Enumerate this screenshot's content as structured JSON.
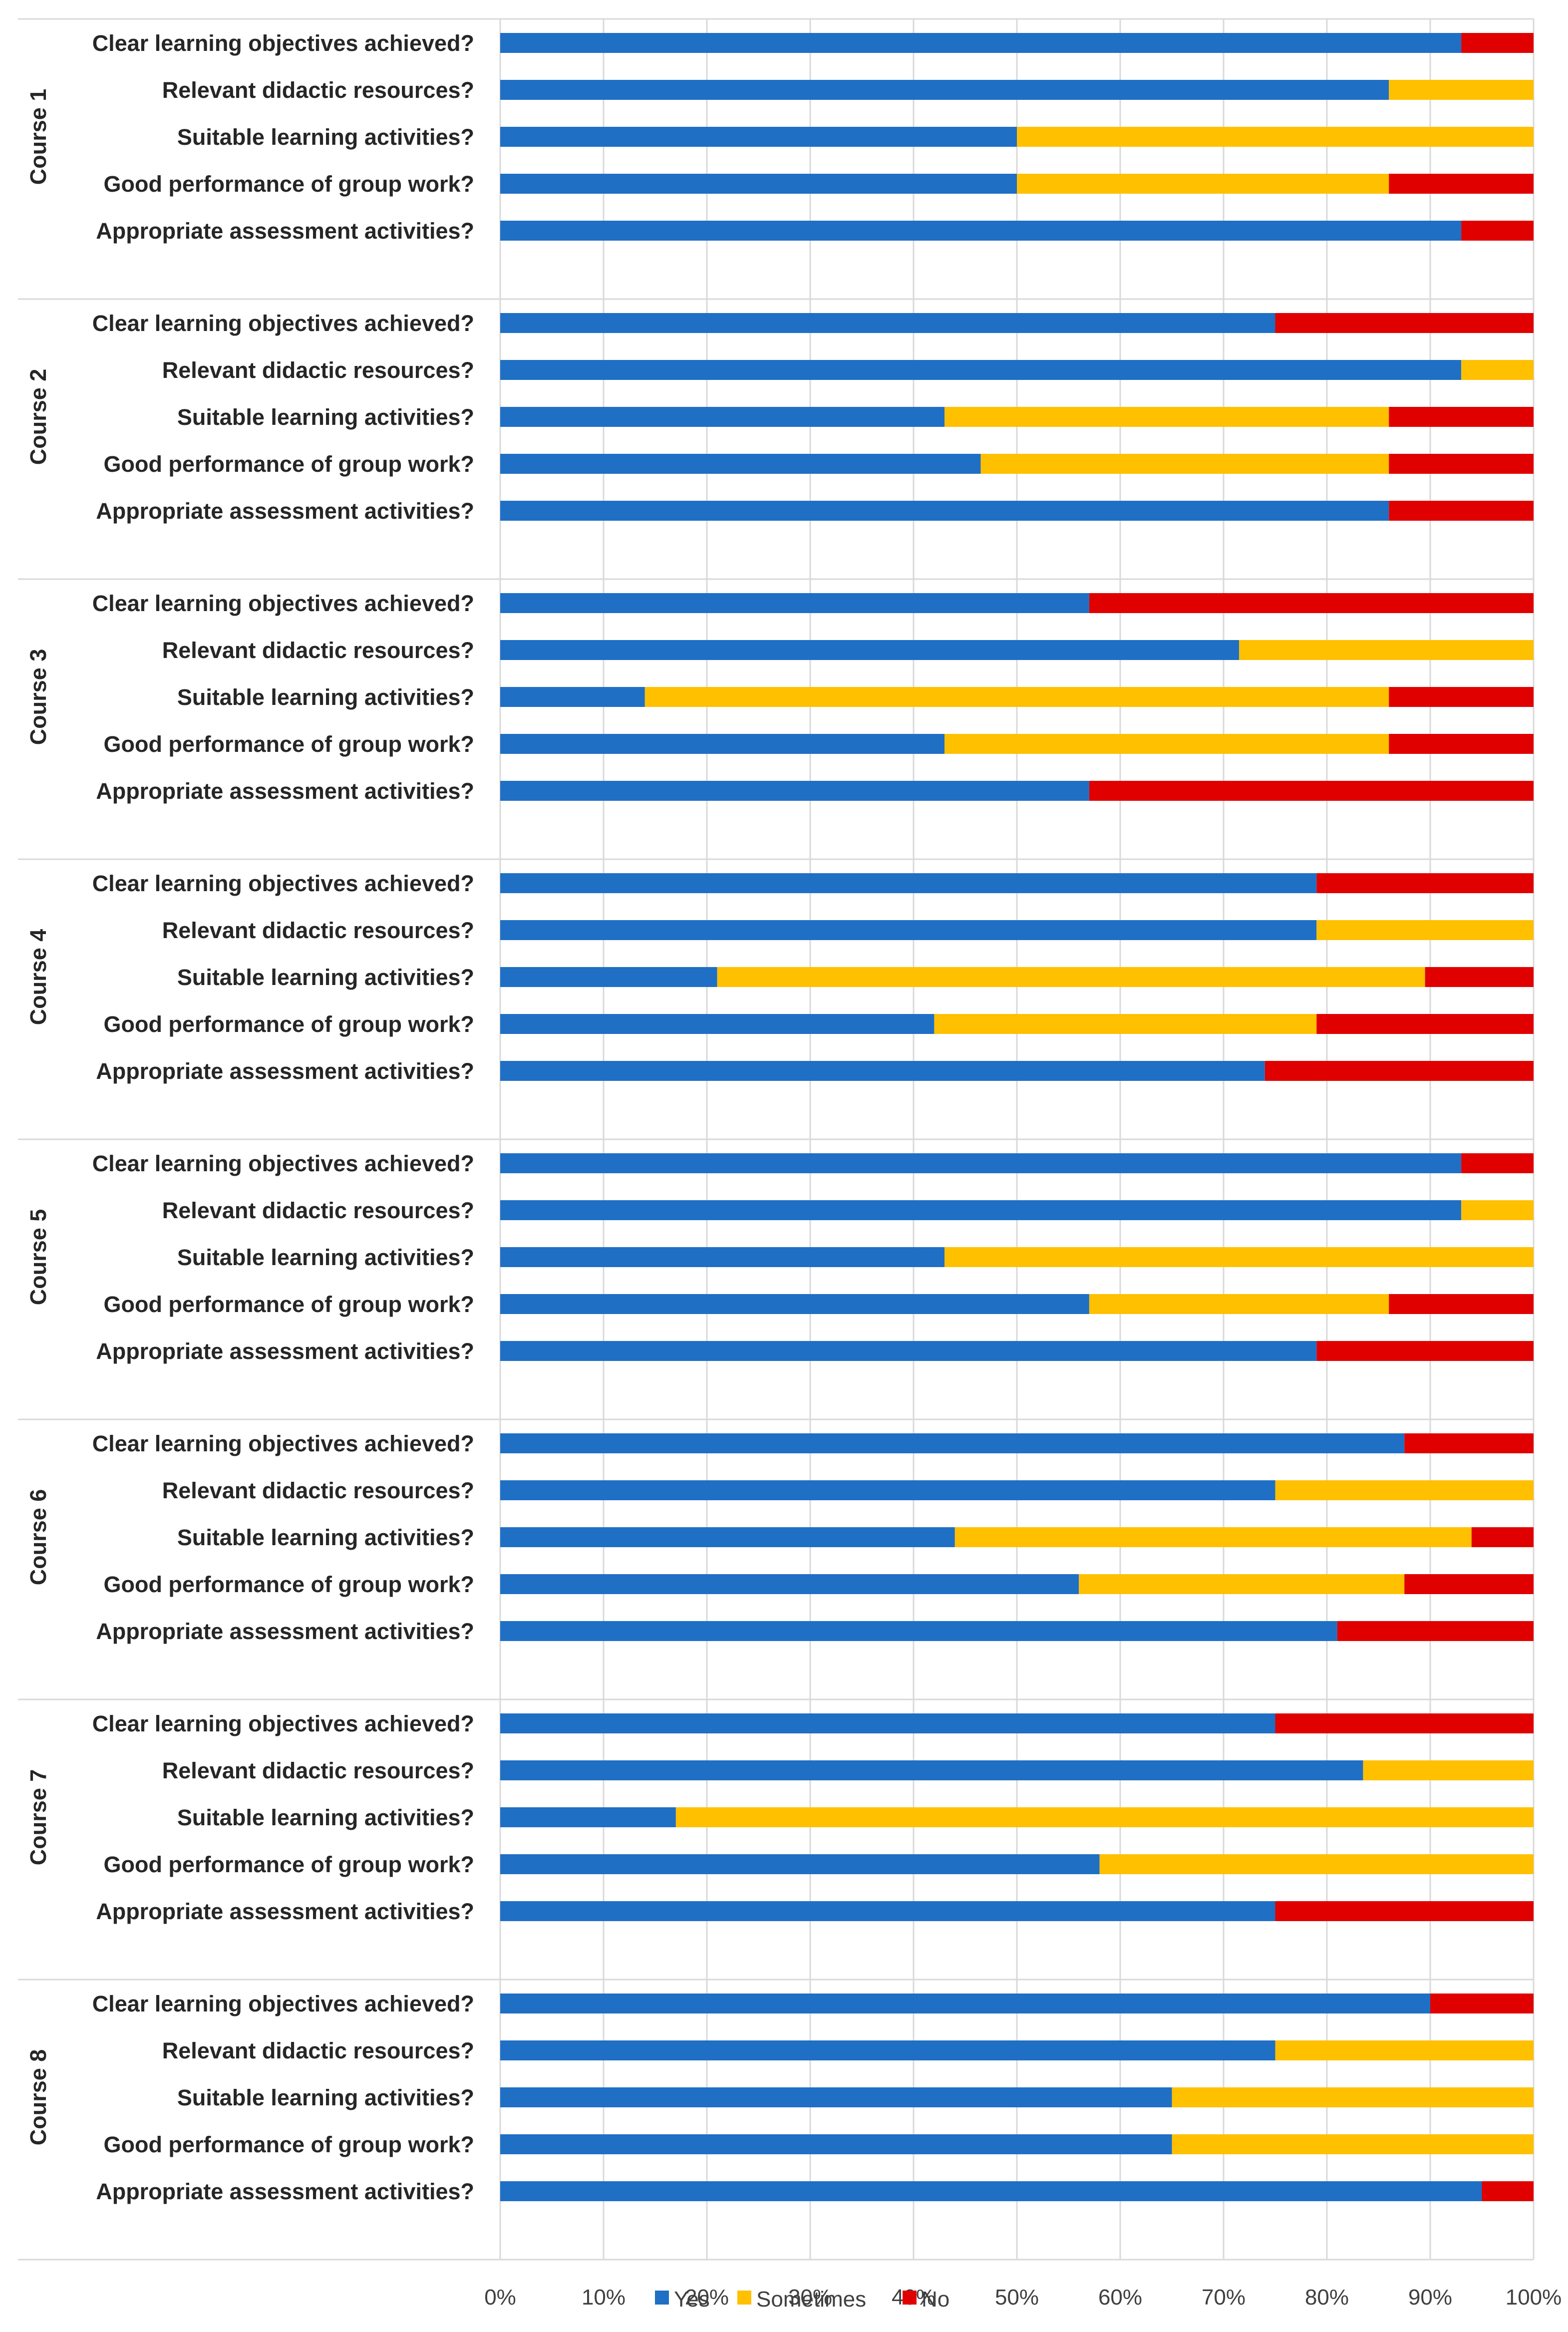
{
  "chart_data": {
    "type": "bar",
    "orientation": "horizontal",
    "stacked": "percent",
    "title": "",
    "xlabel": "",
    "ylabel": "",
    "xlim": [
      0,
      100
    ],
    "x_ticks": [
      "0%",
      "10%",
      "20%",
      "30%",
      "40%",
      "50%",
      "60%",
      "70%",
      "80%",
      "90%",
      "100%"
    ],
    "grid": true,
    "legend_position": "bottom",
    "colors": {
      "Yes": "#1f6fc5",
      "Sometimes": "#ffc000",
      "No": "#e00000"
    },
    "legend": [
      "Yes",
      "Sometimes",
      "No"
    ],
    "questions": [
      "Clear learning objectives achieved?",
      "Relevant didactic resources?",
      "Suitable learning activities?",
      "Good performance of group work?",
      "Appropriate assessment activities?"
    ],
    "groups": [
      {
        "name": "Course 1",
        "yes": [
          93,
          86,
          50,
          50,
          93
        ],
        "sometimes": [
          0,
          14,
          50,
          36,
          0
        ]
      },
      {
        "name": "Course 2",
        "yes": [
          75,
          93,
          43,
          46.5,
          86
        ],
        "sometimes": [
          0,
          7,
          43,
          39.5,
          0
        ]
      },
      {
        "name": "Course 3",
        "yes": [
          57,
          71.5,
          14,
          43,
          57
        ],
        "sometimes": [
          0,
          28.5,
          72,
          43,
          0
        ]
      },
      {
        "name": "Course 4",
        "yes": [
          79,
          79,
          21,
          42,
          74
        ],
        "sometimes": [
          0,
          21,
          68.5,
          37,
          0
        ]
      },
      {
        "name": "Course 5",
        "yes": [
          93,
          93,
          43,
          57,
          79
        ],
        "sometimes": [
          0,
          7,
          57,
          29,
          0
        ]
      },
      {
        "name": "Course 6",
        "yes": [
          87.5,
          75,
          44,
          56,
          81
        ],
        "sometimes": [
          0,
          25,
          50,
          31.5,
          0
        ]
      },
      {
        "name": "Course 7",
        "yes": [
          75,
          83.5,
          17,
          58,
          75
        ],
        "sometimes": [
          0,
          16.5,
          83,
          42,
          0
        ]
      },
      {
        "name": "Course 8",
        "yes": [
          90,
          75,
          65,
          65,
          95
        ],
        "sometimes": [
          0,
          25,
          35,
          35,
          0
        ]
      }
    ]
  }
}
